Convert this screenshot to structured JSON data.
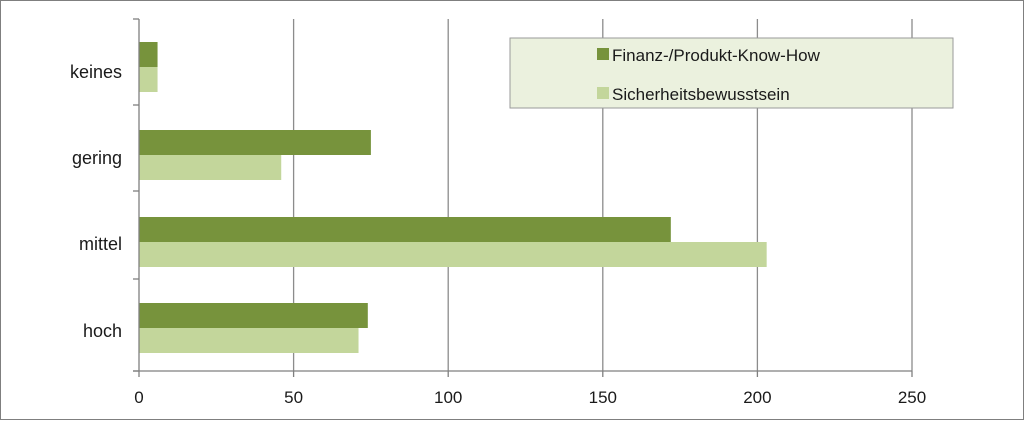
{
  "chart_data": {
    "type": "bar",
    "orientation": "horizontal",
    "categories": [
      "keines",
      "gering",
      "mittel",
      "hoch"
    ],
    "series": [
      {
        "name": "Finanz-/Produkt-Know-How",
        "values": [
          6,
          75,
          172,
          74
        ],
        "color": "#77933c"
      },
      {
        "name": "Sicherheitsbewusstsein",
        "values": [
          6,
          46,
          203,
          71
        ],
        "color": "#c3d69b"
      }
    ],
    "xlim": [
      0,
      250
    ],
    "xticks": [
      0,
      50,
      100,
      150,
      200,
      250
    ],
    "grid": true,
    "legend_position": "top-right",
    "legend_background": "#ebf1de",
    "gridline_color": "#8c8c8c"
  }
}
